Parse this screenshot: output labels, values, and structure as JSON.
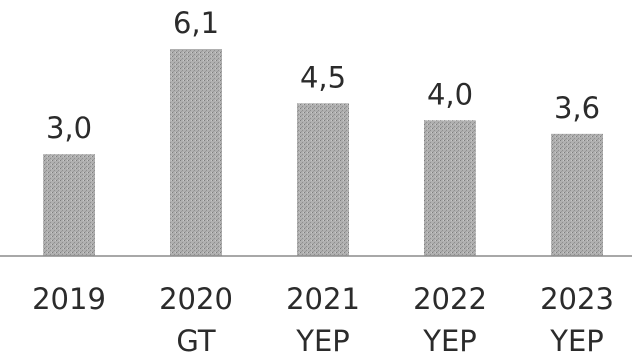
{
  "chart_data": {
    "type": "bar",
    "categories": [
      [
        "2019"
      ],
      [
        "2020",
        "GT"
      ],
      [
        "2021",
        "YEP"
      ],
      [
        "2022",
        "YEP"
      ],
      [
        "2023",
        "YEP"
      ]
    ],
    "values": [
      3.0,
      6.1,
      4.5,
      4.0,
      3.6
    ],
    "value_labels": [
      "3,0",
      "6,1",
      "4,5",
      "4,0",
      "3,6"
    ],
    "title": "",
    "xlabel": "",
    "ylabel": "",
    "ylim": [
      0,
      6.1
    ],
    "grid": false,
    "colors": {
      "bar": "#a9a9a9",
      "bar_stipple": "#8a8a8a",
      "baseline": "#8c8c8c",
      "text": "#2b2b2b"
    }
  }
}
